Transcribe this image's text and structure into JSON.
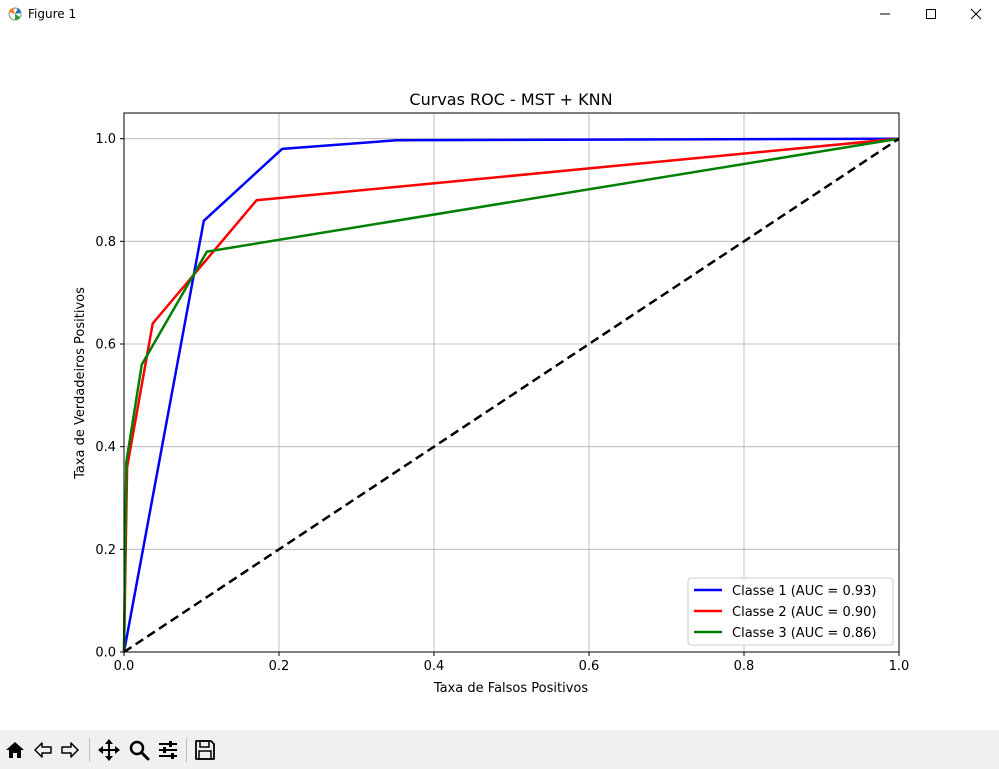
{
  "window": {
    "title": "Figure 1",
    "controls": {
      "minimize": "minimize-icon",
      "maximize": "maximize-icon",
      "close": "close-icon"
    }
  },
  "toolbar": {
    "buttons": [
      {
        "name": "home",
        "icon": "home-icon"
      },
      {
        "name": "back",
        "icon": "back-arrow-icon"
      },
      {
        "name": "forward",
        "icon": "forward-arrow-icon"
      },
      {
        "name": "pan",
        "icon": "pan-icon"
      },
      {
        "name": "zoom",
        "icon": "zoom-icon"
      },
      {
        "name": "configure-subplots",
        "icon": "sliders-icon"
      },
      {
        "name": "save",
        "icon": "save-icon"
      }
    ]
  },
  "colors": {
    "class1": "#0000ff",
    "class2": "#ff0000",
    "class3": "#008000",
    "diagonal": "#000000",
    "grid": "#b0b0b0"
  },
  "chart_data": {
    "type": "line",
    "title": "Curvas ROC - MST + KNN",
    "xlabel": "Taxa de Falsos Positivos",
    "ylabel": "Taxa de Verdadeiros Positivos",
    "xlim": [
      0.0,
      1.0
    ],
    "ylim": [
      0.0,
      1.05
    ],
    "xticks": [
      "0.0",
      "0.2",
      "0.4",
      "0.6",
      "0.8",
      "1.0"
    ],
    "yticks": [
      "0.0",
      "0.2",
      "0.4",
      "0.6",
      "0.8",
      "1.0"
    ],
    "grid": true,
    "legend_position": "lower-right",
    "series": [
      {
        "name": "Classe 1 (AUC = 0.93)",
        "color": "#0000ff",
        "x": [
          0.0,
          0.103,
          0.204,
          0.352,
          1.0
        ],
        "y": [
          0.0,
          0.84,
          0.98,
          0.997,
          1.0
        ]
      },
      {
        "name": "Classe 2 (AUC = 0.90)",
        "color": "#ff0000",
        "x": [
          0.0,
          0.004,
          0.037,
          0.171,
          1.0
        ],
        "y": [
          0.0,
          0.36,
          0.64,
          0.88,
          1.0
        ]
      },
      {
        "name": "Classe 3 (AUC = 0.86)",
        "color": "#008000",
        "x": [
          0.0,
          0.003,
          0.023,
          0.107,
          1.0
        ],
        "y": [
          0.0,
          0.37,
          0.56,
          0.78,
          1.0
        ]
      }
    ],
    "reference_line": {
      "x": [
        0.0,
        1.0
      ],
      "y": [
        0.0,
        1.0
      ],
      "style": "dashed",
      "color": "#000000"
    }
  }
}
